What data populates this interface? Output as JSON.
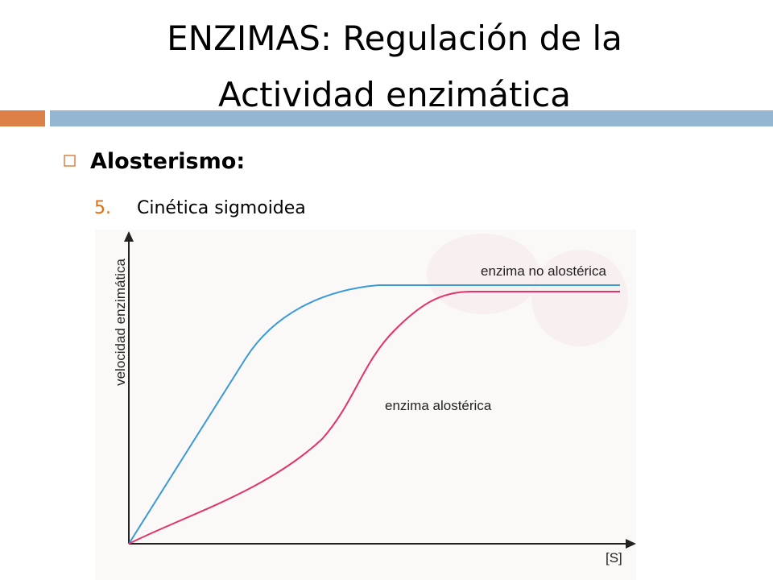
{
  "header": {
    "title_lines": [
      "ENZIMAS: Regulación de la",
      "Actividad enzimática"
    ]
  },
  "body": {
    "bullet": "Alosterismo:",
    "item": {
      "number": "5.",
      "text": "Cinética sigmoidea"
    }
  },
  "figure": {
    "y_label": "velocidad enzimática",
    "x_label": "[S]",
    "curves": [
      "enzima no alostérica",
      "enzima alostérica"
    ]
  }
}
